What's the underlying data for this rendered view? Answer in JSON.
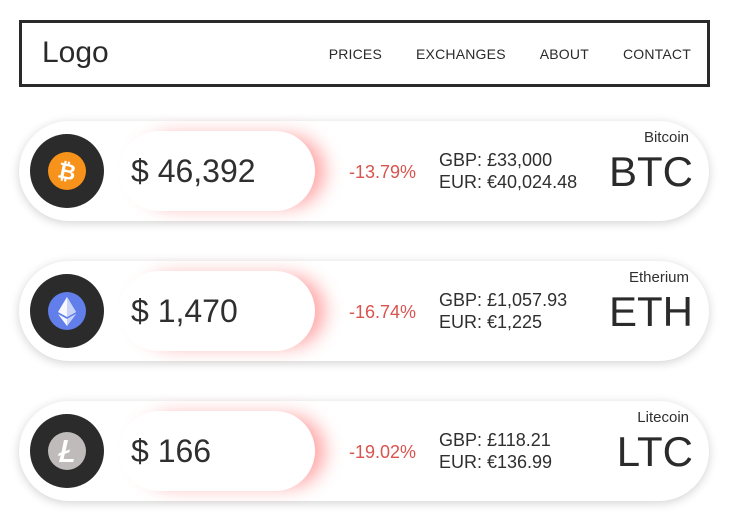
{
  "header": {
    "logo": "Logo",
    "nav": [
      "PRICES",
      "EXCHANGES",
      "ABOUT",
      "CONTACT"
    ]
  },
  "coins": [
    {
      "name": "Bitcoin",
      "ticker": "BTC",
      "usd": "$ 46,392",
      "change": "-13.79%",
      "gbp": "GBP: £33,000",
      "eur": "EUR: €40,024.48",
      "icon": "bitcoin-icon",
      "icon_color": "#f7931a"
    },
    {
      "name": "Etherium",
      "ticker": "ETH",
      "usd": "$ 1,470",
      "change": "-16.74%",
      "gbp": "GBP: £1,057.93",
      "eur": "EUR: €1,225",
      "icon": "ethereum-icon",
      "icon_color": "#627eea"
    },
    {
      "name": "Litecoin",
      "ticker": "LTC",
      "usd": "$ 166",
      "change": "-19.02%",
      "gbp": "GBP: £118.21",
      "eur": "EUR: €136.99",
      "icon": "litecoin-icon",
      "icon_color": "#bfbbbb"
    }
  ],
  "colors": {
    "negative_change": "#d9534f",
    "dark": "#2b2b2b"
  }
}
